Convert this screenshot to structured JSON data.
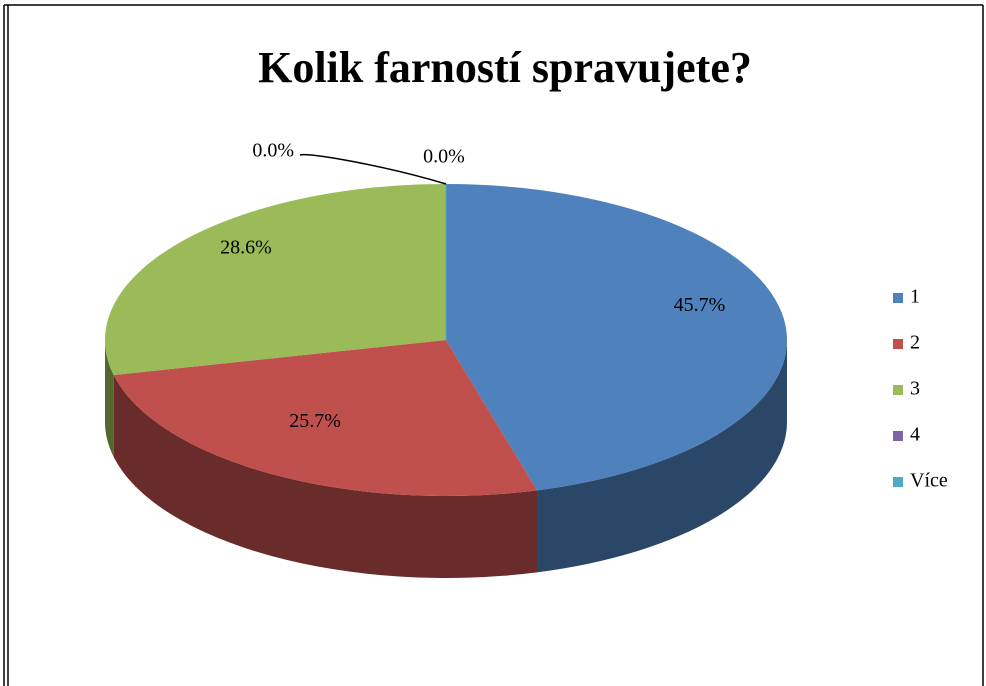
{
  "chart_data": {
    "type": "pie",
    "title": "Kolik farností spravujete?",
    "categories": [
      "1",
      "2",
      "3",
      "4",
      "Více"
    ],
    "values": [
      45.7,
      25.7,
      28.6,
      0,
      0
    ],
    "value_labels": [
      "45.7%",
      "25.7%",
      "28.6%",
      "0.0%",
      "0.0%"
    ],
    "colors": [
      "#4f81bd",
      "#c0504d",
      "#9bbb59",
      "#8064a2",
      "#4bacc6"
    ],
    "legend": "right"
  }
}
